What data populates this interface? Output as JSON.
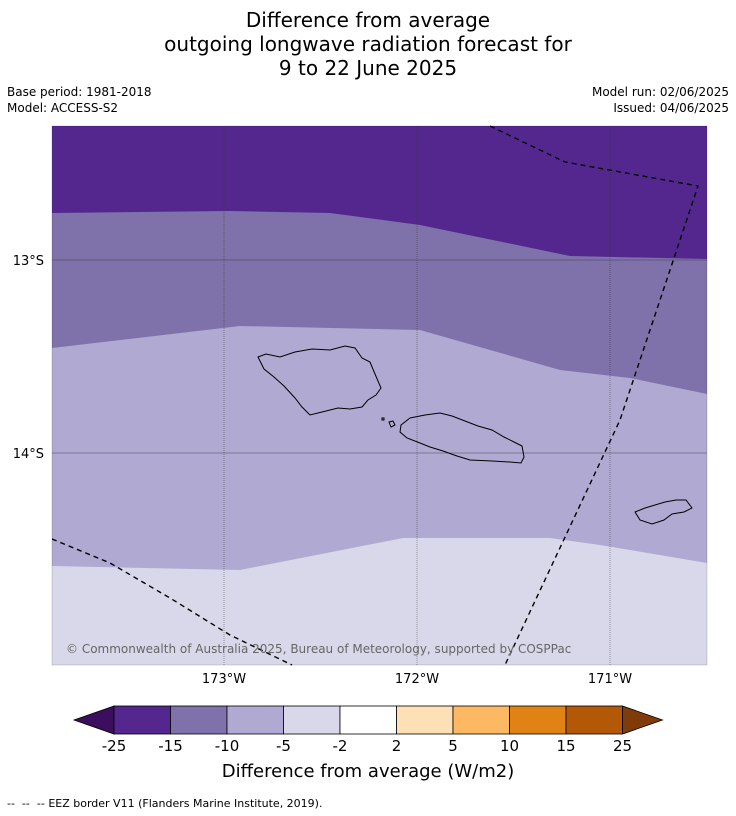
{
  "title": {
    "line1": "Difference from average",
    "line2": "outgoing longwave radiation forecast for",
    "line3": "9 to 22 June 2025"
  },
  "meta": {
    "base_period": "Base period: 1981-2018",
    "model": "Model: ACCESS-S2",
    "model_run": "Model run: 02/06/2025",
    "issued": "Issued: 04/06/2025"
  },
  "map": {
    "region": "Samoa",
    "lat_ticks": [
      "13°S",
      "14°S"
    ],
    "lon_ticks": [
      "173°W",
      "172°W",
      "171°W"
    ],
    "copyright": "© Commonwealth of Australia 2025, Bureau of Meteorology, supported by COSPPac",
    "layers": [
      "olr-anomaly-bands",
      "coastlines",
      "graticule",
      "eez-border"
    ]
  },
  "colorbar": {
    "title": "Difference from average (W/m2)",
    "ticks": [
      "-25",
      "-15",
      "-10",
      "-5",
      "-2",
      "2",
      "5",
      "10",
      "15",
      "25"
    ],
    "colors": {
      "below_min": "#3b0f5e",
      "bins": [
        "#54278f",
        "#7f71aa",
        "#b0a9d2",
        "#d8d8ea",
        "#ffffff",
        "#fee0b6",
        "#fdb863",
        "#e08214",
        "#b35806"
      ],
      "above_max": "#7f3b08"
    }
  },
  "footnote": {
    "symbol": "--  --  --",
    "text": "EEZ border V11 (Flanders Marine Institute, 2019)."
  }
}
